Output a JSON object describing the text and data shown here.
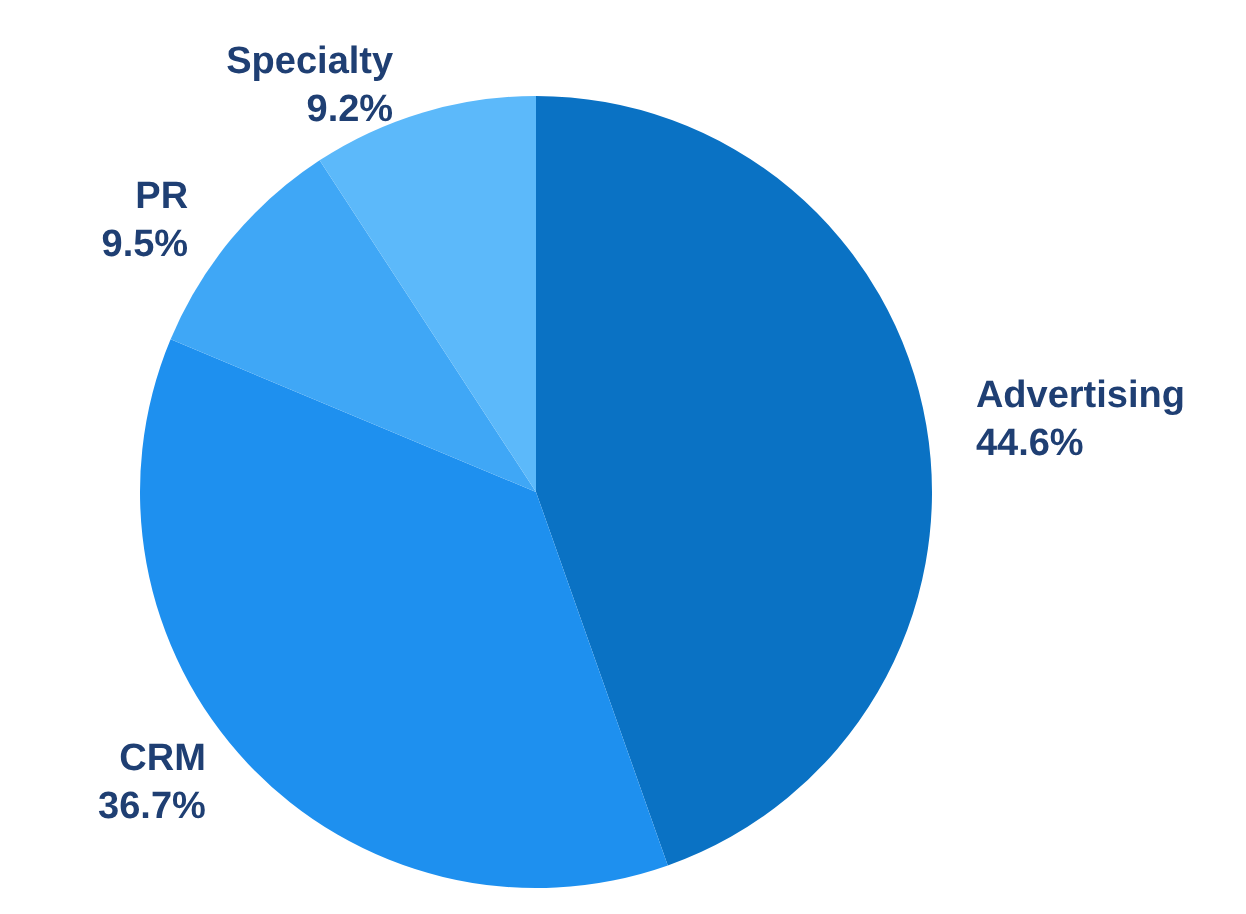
{
  "chart_data": {
    "type": "pie",
    "categories": [
      "Advertising",
      "CRM",
      "PR",
      "Specialty"
    ],
    "values": [
      44.6,
      36.7,
      9.5,
      9.2
    ],
    "value_labels": [
      "44.6%",
      "36.7%",
      "9.5%",
      "9.2%"
    ],
    "colors": [
      "#0a72c4",
      "#1e90ef",
      "#3fa7f6",
      "#5cb9fa"
    ],
    "legend": false
  }
}
